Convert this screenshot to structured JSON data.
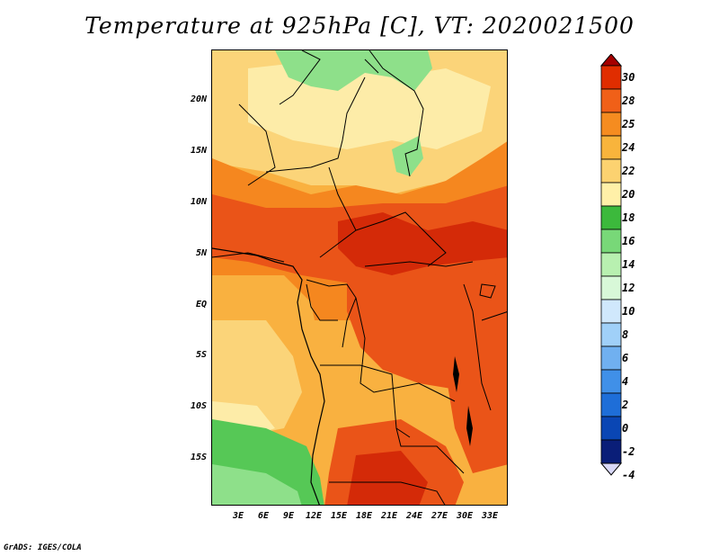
{
  "title": "Temperature at 925hPa [C], VT: 2020021500",
  "credit": "GrADS: IGES/COLA",
  "lat_labels": [
    "20N",
    "15N",
    "10N",
    "5N",
    "EQ",
    "5S",
    "10S",
    "15S"
  ],
  "lon_labels": [
    "3E",
    "6E",
    "9E",
    "12E",
    "15E",
    "18E",
    "21E",
    "24E",
    "27E",
    "30E",
    "33E"
  ],
  "colorbar": {
    "labels": [
      "30",
      "28",
      "25",
      "24",
      "22",
      "20",
      "18",
      "16",
      "14",
      "12",
      "10",
      "8",
      "6",
      "4",
      "2",
      "0",
      "-2",
      "-4"
    ],
    "colors": [
      "#a50000",
      "#e02d00",
      "#f06018",
      "#f58c20",
      "#f8b43c",
      "#fcd270",
      "#fff0a8",
      "#3cb93c",
      "#78d878",
      "#b8f0b0",
      "#d8f8d8",
      "#d0e8fc",
      "#a0d0f8",
      "#70b0f0",
      "#4090e8",
      "#1e6ed8",
      "#0a46b4",
      "#0a1e78",
      "#d8d8f8"
    ]
  },
  "map_colors": {
    "very_hot": "#d42a08",
    "hot": "#ea5418",
    "warm": "#f5871f",
    "mild": "#f9b140",
    "cool": "#fbd479",
    "pale": "#fdeca8",
    "green": "#56c856",
    "light_green": "#8ee08a"
  }
}
